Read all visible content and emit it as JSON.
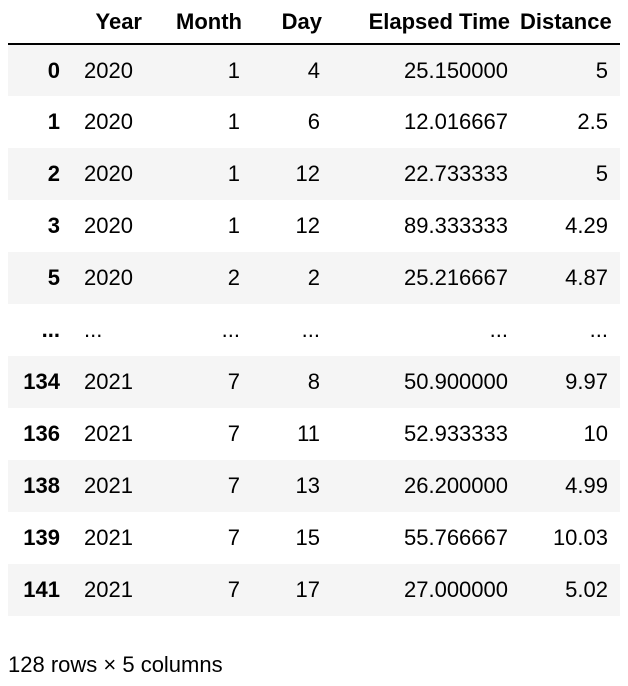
{
  "table": {
    "columns": [
      "",
      "Year",
      "Month",
      "Day",
      "Elapsed Time",
      "Distance"
    ],
    "rows": [
      [
        "0",
        "2020",
        "1",
        "4",
        "25.150000",
        "5"
      ],
      [
        "1",
        "2020",
        "1",
        "6",
        "12.016667",
        "2.5"
      ],
      [
        "2",
        "2020",
        "1",
        "12",
        "22.733333",
        "5"
      ],
      [
        "3",
        "2020",
        "1",
        "12",
        "89.333333",
        "4.29"
      ],
      [
        "5",
        "2020",
        "2",
        "2",
        "25.216667",
        "4.87"
      ],
      [
        "...",
        "...",
        "...",
        "...",
        "...",
        "..."
      ],
      [
        "134",
        "2021",
        "7",
        "8",
        "50.900000",
        "9.97"
      ],
      [
        "136",
        "2021",
        "7",
        "11",
        "52.933333",
        "10"
      ],
      [
        "138",
        "2021",
        "7",
        "13",
        "26.200000",
        "4.99"
      ],
      [
        "139",
        "2021",
        "7",
        "15",
        "55.766667",
        "10.03"
      ],
      [
        "141",
        "2021",
        "7",
        "17",
        "27.000000",
        "5.02"
      ]
    ]
  },
  "shape_text": "128 rows × 5 columns"
}
